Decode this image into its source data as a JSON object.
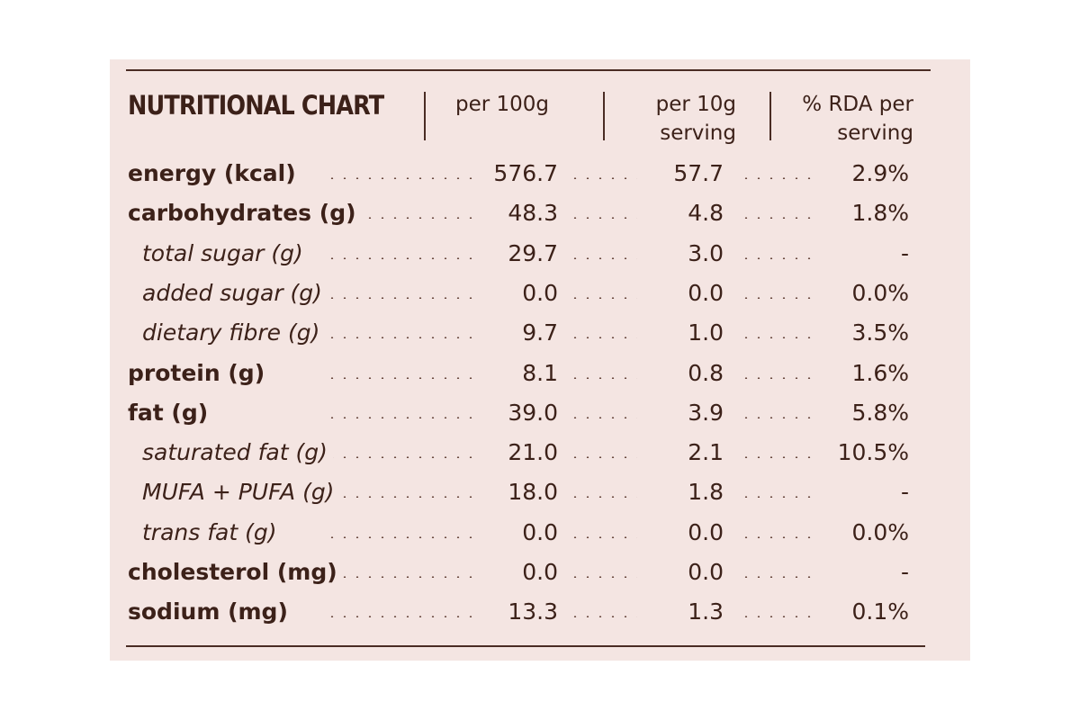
{
  "header": {
    "title": "NUTRITIONAL CHART",
    "col1": "per 100g",
    "col2_line1": "per 10g",
    "col2_line2": "serving",
    "col3_line1": "% RDA per",
    "col3_line2": "serving"
  },
  "rows": [
    {
      "label": "energy (kcal)",
      "style": "main",
      "per100": "576.7",
      "per10": "57.7",
      "rda": "2.9%"
    },
    {
      "label": "carbohydrates (g)",
      "style": "main",
      "per100": "48.3",
      "per10": "4.8",
      "rda": "1.8%"
    },
    {
      "label": "total sugar (g)",
      "style": "sub",
      "per100": "29.7",
      "per10": "3.0",
      "rda": "-"
    },
    {
      "label": "added sugar (g)",
      "style": "sub",
      "per100": "0.0",
      "per10": "0.0",
      "rda": "0.0%"
    },
    {
      "label": "dietary fibre (g)",
      "style": "sub",
      "per100": "9.7",
      "per10": "1.0",
      "rda": "3.5%"
    },
    {
      "label": "protein (g)",
      "style": "main",
      "per100": "8.1",
      "per10": "0.8",
      "rda": "1.6%"
    },
    {
      "label": "fat (g)",
      "style": "main",
      "per100": "39.0",
      "per10": "3.9",
      "rda": "5.8%"
    },
    {
      "label": "saturated fat (g)",
      "style": "sub",
      "per100": "21.0",
      "per10": "2.1",
      "rda": "10.5%"
    },
    {
      "label": "MUFA + PUFA (g)",
      "style": "sub",
      "per100": "18.0",
      "per10": "1.8",
      "rda": "-"
    },
    {
      "label": "trans fat (g)",
      "style": "sub",
      "per100": "0.0",
      "per10": "0.0",
      "rda": "0.0%"
    },
    {
      "label": "cholesterol (mg)",
      "style": "main",
      "per100": "0.0",
      "per10": "0.0",
      "rda": "-"
    },
    {
      "label": "sodium (mg)",
      "style": "main",
      "per100": "13.3",
      "per10": "1.3",
      "rda": "0.1%"
    }
  ]
}
